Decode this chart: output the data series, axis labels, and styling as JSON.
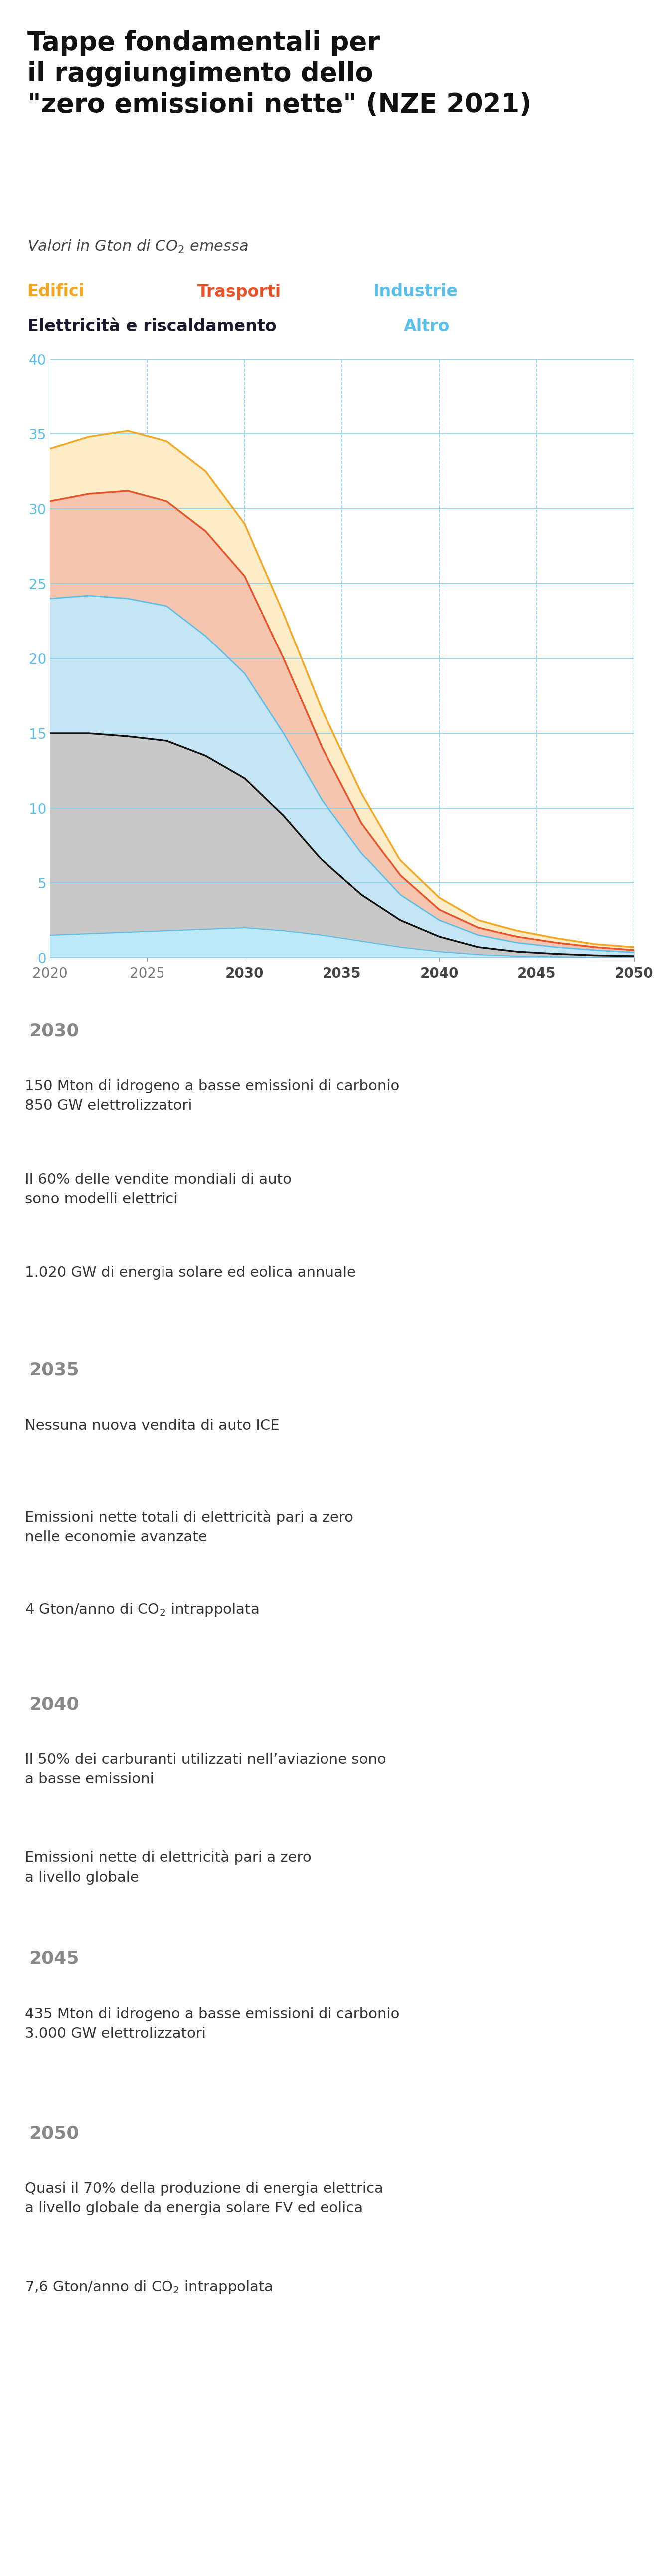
{
  "title_line1": "Tappe fondamentali per",
  "title_line2": "il raggiungimento dello",
  "title_line3": "\"zero emissioni nette\" (NZE 2021)",
  "subtitle": "Valori in Gton di CO₂ emessa",
  "legend_row1": [
    {
      "label": "Edifici",
      "color": "#F5A623"
    },
    {
      "label": "Trasporti",
      "color": "#E8532A"
    },
    {
      "label": "Industrie",
      "color": "#5BBFEA"
    }
  ],
  "legend_row2_left": {
    "label": "Elettricità e riscaldamento",
    "color": "#1a1a2e"
  },
  "legend_row2_right": {
    "label": "Altro",
    "color": "#5BBFEA"
  },
  "chart": {
    "xlim": [
      2020,
      2050
    ],
    "ylim": [
      0,
      40
    ],
    "xticks": [
      2020,
      2025,
      2030,
      2035,
      2040,
      2045,
      2050
    ],
    "yticks": [
      0,
      5,
      10,
      15,
      20,
      25,
      30,
      35,
      40
    ],
    "grid_color": "#87CEEB",
    "tick_color_x": "#999999",
    "tick_color_y": "#5BBFEA",
    "milestone_xtick_color": "#555555",
    "years": [
      2020,
      2022,
      2024,
      2026,
      2028,
      2030,
      2032,
      2034,
      2036,
      2038,
      2040,
      2042,
      2044,
      2046,
      2048,
      2050
    ],
    "edifici": [
      34.0,
      34.8,
      35.2,
      34.5,
      32.5,
      29.0,
      23.0,
      16.5,
      11.0,
      6.5,
      4.0,
      2.5,
      1.8,
      1.3,
      0.9,
      0.7
    ],
    "trasporti": [
      30.5,
      31.0,
      31.2,
      30.5,
      28.5,
      25.5,
      20.0,
      14.0,
      9.0,
      5.5,
      3.2,
      2.0,
      1.4,
      1.0,
      0.7,
      0.5
    ],
    "industrie": [
      24.0,
      24.2,
      24.0,
      23.5,
      21.5,
      19.0,
      15.0,
      10.5,
      7.0,
      4.2,
      2.5,
      1.5,
      1.0,
      0.7,
      0.5,
      0.35
    ],
    "elettricita": [
      15.0,
      15.0,
      14.8,
      14.5,
      13.5,
      12.0,
      9.5,
      6.5,
      4.2,
      2.5,
      1.4,
      0.7,
      0.4,
      0.25,
      0.15,
      0.1
    ],
    "altro": [
      1.5,
      1.6,
      1.7,
      1.8,
      1.9,
      2.0,
      1.8,
      1.5,
      1.1,
      0.7,
      0.4,
      0.2,
      0.1,
      0.05,
      0.02,
      0.0
    ],
    "zero": [
      0.0,
      0.0,
      0.0,
      0.0,
      0.0,
      0.0,
      0.0,
      0.0,
      0.0,
      0.0,
      0.0,
      0.0,
      0.0,
      0.0,
      0.0,
      0.0
    ],
    "edifici_fill_color": "#FDECC8",
    "trasporti_fill_color": "#F5C5B0",
    "industrie_fill_color": "#C5E5F5",
    "elettricita_fill_color": "#C8C8C8",
    "altro_fill_color": "#BDE8F8",
    "edifici_line_color": "#F5A623",
    "trasporti_line_color": "#E8532A",
    "industrie_line_color": "#5BBFEA",
    "elettricita_line_color": "#111111",
    "altro_line_color": "#5BBFEA"
  },
  "milestones": [
    {
      "year": "2030",
      "items": [
        "150 Mton di idrogeno a basse emissioni di carbonio\n850 GW elettrolizzatori",
        "Il 60% delle vendite mondiali di auto\nsono modelli elettrici",
        "1.020 GW di energia solare ed eolica annuale"
      ]
    },
    {
      "year": "2035",
      "items": [
        "Nessuna nuova vendita di auto ICE",
        "Emissioni nette totali di elettricità pari a zero\nnelle economie avanzate",
        "4 Gton/anno di CO₂ intrappolata"
      ]
    },
    {
      "year": "2040",
      "items": [
        "Il 50% dei carburanti utilizzati nell’aviazione sono\na basse emissioni",
        "Emissioni nette di elettricità pari a zero\na livello globale"
      ]
    },
    {
      "year": "2045",
      "items": [
        "435 Mton di idrogeno a basse emissioni di carbonio\n3.000 GW elettrolizzatori"
      ]
    },
    {
      "year": "2050",
      "items": [
        "Quasi il 70% della produzione di energia elettrica\na livello globale da energia solare FV ed eolica",
        "7,6 Gton/anno di CO₂ intrappolata"
      ]
    }
  ],
  "bg_color": "#FFFFFF",
  "milestone_header_bg": "#F0F0F0",
  "milestone_content_bg": "#FAFAFA",
  "milestone_sep_color": "#4AADE8",
  "milestone_year_color": "#888888",
  "milestone_text_color": "#333333",
  "outer_bg": "#E8E8E8"
}
